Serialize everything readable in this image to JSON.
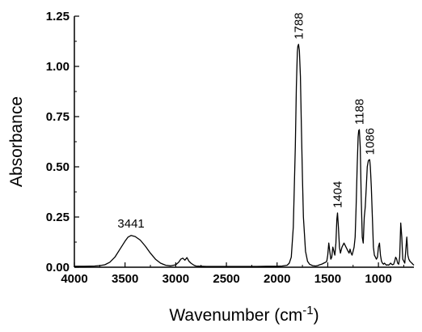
{
  "chart_data": {
    "type": "line",
    "title": "",
    "xlabel": "Wavenumber (cm",
    "xlabel_sup": "-1",
    "xlabel_close": ")",
    "ylabel": "Absorbance",
    "xlim": [
      4000,
      650
    ],
    "x_reversed": true,
    "ylim": [
      0,
      1.25
    ],
    "grid": false,
    "legend": "none",
    "line_color": "#000000",
    "x_ticks": [
      4000,
      3500,
      3000,
      2500,
      2000,
      1500,
      1000
    ],
    "x_tick_labels": [
      "4000",
      "3500",
      "3000",
      "2500",
      "2000",
      "1500",
      "1000"
    ],
    "y_ticks": [
      0,
      0.25,
      0.5,
      0.75,
      1.0,
      1.25
    ],
    "y_tick_labels": [
      "0.00",
      "0.25",
      "0.50",
      "0.75",
      "1.00",
      "1.25"
    ],
    "annotations": [
      {
        "text": "3441",
        "x": 3441,
        "y": 0.158
      },
      {
        "text": "1788",
        "x": 1788,
        "y": 1.11
      },
      {
        "text": "1404",
        "x": 1404,
        "y": 0.27
      },
      {
        "text": "1188",
        "x": 1188,
        "y": 0.685
      },
      {
        "text": "1086",
        "x": 1086,
        "y": 0.535
      }
    ],
    "series": [
      {
        "x": [
          4000,
          3900,
          3800,
          3750,
          3700,
          3650,
          3600,
          3550,
          3500,
          3470,
          3441,
          3400,
          3350,
          3300,
          3250,
          3200,
          3150,
          3100,
          3050,
          3000,
          2970,
          2950,
          2930,
          2910,
          2890,
          2870,
          2850,
          2820,
          2800,
          2700,
          2600,
          2500,
          2400,
          2300,
          2200,
          2100,
          2000,
          1950,
          1900,
          1880,
          1860,
          1840,
          1820,
          1810,
          1800,
          1795,
          1788,
          1780,
          1770,
          1760,
          1750,
          1740,
          1720,
          1700,
          1680,
          1650,
          1620,
          1600,
          1580,
          1560,
          1540,
          1520,
          1510,
          1500,
          1490,
          1480,
          1470,
          1460,
          1450,
          1440,
          1430,
          1420,
          1410,
          1404,
          1395,
          1385,
          1375,
          1360,
          1340,
          1320,
          1300,
          1290,
          1280,
          1270,
          1260,
          1250,
          1240,
          1230,
          1220,
          1210,
          1200,
          1195,
          1188,
          1180,
          1170,
          1160,
          1150,
          1140,
          1130,
          1120,
          1110,
          1100,
          1092,
          1086,
          1080,
          1070,
          1060,
          1050,
          1040,
          1030,
          1020,
          1010,
          1000,
          990,
          980,
          970,
          960,
          950,
          940,
          930,
          920,
          910,
          900,
          890,
          880,
          870,
          860,
          850,
          840,
          830,
          820,
          810,
          800,
          790,
          780,
          770,
          760,
          750,
          740,
          730,
          720,
          710,
          700,
          690,
          680,
          670,
          660,
          650
        ],
        "y": [
          0.005,
          0.005,
          0.006,
          0.008,
          0.012,
          0.025,
          0.05,
          0.09,
          0.13,
          0.15,
          0.158,
          0.153,
          0.135,
          0.105,
          0.07,
          0.04,
          0.02,
          0.01,
          0.007,
          0.012,
          0.025,
          0.04,
          0.045,
          0.035,
          0.048,
          0.03,
          0.02,
          0.01,
          0.006,
          0.004,
          0.004,
          0.004,
          0.004,
          0.004,
          0.004,
          0.005,
          0.005,
          0.006,
          0.01,
          0.02,
          0.05,
          0.2,
          0.6,
          0.9,
          1.07,
          1.1,
          1.11,
          1.08,
          0.95,
          0.7,
          0.45,
          0.25,
          0.08,
          0.03,
          0.015,
          0.008,
          0.006,
          0.008,
          0.012,
          0.015,
          0.02,
          0.025,
          0.03,
          0.06,
          0.12,
          0.08,
          0.04,
          0.05,
          0.1,
          0.08,
          0.06,
          0.12,
          0.24,
          0.27,
          0.2,
          0.1,
          0.07,
          0.1,
          0.12,
          0.1,
          0.08,
          0.07,
          0.09,
          0.07,
          0.06,
          0.08,
          0.1,
          0.15,
          0.3,
          0.5,
          0.65,
          0.68,
          0.685,
          0.6,
          0.35,
          0.15,
          0.12,
          0.25,
          0.3,
          0.4,
          0.5,
          0.53,
          0.535,
          0.535,
          0.5,
          0.4,
          0.25,
          0.1,
          0.06,
          0.05,
          0.04,
          0.05,
          0.1,
          0.12,
          0.06,
          0.03,
          0.02,
          0.015,
          0.02,
          0.015,
          0.01,
          0.012,
          0.01,
          0.015,
          0.02,
          0.015,
          0.012,
          0.015,
          0.03,
          0.05,
          0.04,
          0.02,
          0.015,
          0.05,
          0.22,
          0.15,
          0.04,
          0.03,
          0.02,
          0.09,
          0.15,
          0.06,
          0.04,
          0.03,
          0.025,
          0.02,
          0.015,
          0.01
        ]
      }
    ]
  }
}
